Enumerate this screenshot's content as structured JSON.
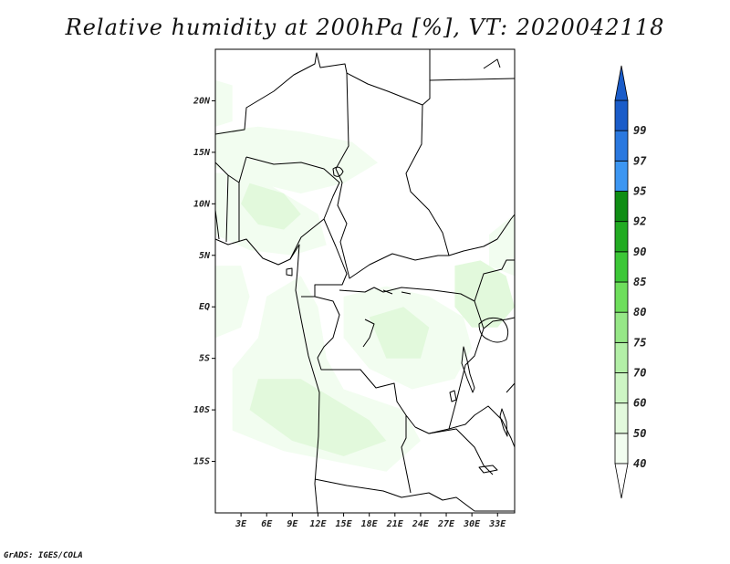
{
  "title": "Relative humidity at 200hPa [%], VT: 2020042118",
  "credit": "GrADS: IGES/COLA",
  "map": {
    "lon_range": [
      0,
      35
    ],
    "lat_range": [
      -20,
      25
    ],
    "lat_ticks": [
      {
        "value": 20,
        "label": "20N"
      },
      {
        "value": 15,
        "label": "15N"
      },
      {
        "value": 10,
        "label": "10N"
      },
      {
        "value": 5,
        "label": "5N"
      },
      {
        "value": 0,
        "label": "EQ"
      },
      {
        "value": -5,
        "label": "5S"
      },
      {
        "value": -10,
        "label": "10S"
      },
      {
        "value": -15,
        "label": "15S"
      }
    ],
    "lon_ticks": [
      {
        "value": 3,
        "label": "3E"
      },
      {
        "value": 6,
        "label": "6E"
      },
      {
        "value": 9,
        "label": "9E"
      },
      {
        "value": 12,
        "label": "12E"
      },
      {
        "value": 15,
        "label": "15E"
      },
      {
        "value": 18,
        "label": "18E"
      },
      {
        "value": 21,
        "label": "21E"
      },
      {
        "value": 24,
        "label": "24E"
      },
      {
        "value": 27,
        "label": "27E"
      },
      {
        "value": 30,
        "label": "30E"
      },
      {
        "value": 33,
        "label": "33E"
      }
    ],
    "humid_regions": [
      {
        "name": "sahel-band",
        "level": 40,
        "poly": [
          [
            0,
            17
          ],
          [
            5,
            17.5
          ],
          [
            10,
            17
          ],
          [
            16,
            16
          ],
          [
            19,
            14
          ],
          [
            15,
            12
          ],
          [
            10,
            11
          ],
          [
            5,
            12
          ],
          [
            0,
            13.5
          ]
        ]
      },
      {
        "name": "west-africa-coast",
        "level": 40,
        "poly": [
          [
            0,
            13
          ],
          [
            4,
            13
          ],
          [
            8,
            11
          ],
          [
            12,
            9
          ],
          [
            13,
            6
          ],
          [
            9,
            5
          ],
          [
            4,
            5.5
          ],
          [
            0,
            7
          ]
        ]
      },
      {
        "name": "nigeria-interior",
        "level": 50,
        "poly": [
          [
            4,
            12
          ],
          [
            8,
            11
          ],
          [
            10,
            9
          ],
          [
            8,
            7.5
          ],
          [
            5,
            8
          ],
          [
            3,
            10
          ]
        ]
      },
      {
        "name": "ethiopia-edge",
        "level": 40,
        "poly": [
          [
            32,
            7
          ],
          [
            35,
            9
          ],
          [
            35,
            3
          ],
          [
            32,
            4
          ]
        ]
      },
      {
        "name": "gabon-angola-coast",
        "level": 40,
        "poly": [
          [
            6,
            1
          ],
          [
            10,
            3
          ],
          [
            12,
            0
          ],
          [
            13,
            -5
          ],
          [
            15,
            -8
          ],
          [
            22,
            -10
          ],
          [
            24,
            -13
          ],
          [
            20,
            -16
          ],
          [
            14,
            -15
          ],
          [
            8,
            -14
          ],
          [
            2,
            -12
          ],
          [
            2,
            -6
          ],
          [
            5,
            -3
          ]
        ]
      },
      {
        "name": "angola-core",
        "level": 50,
        "poly": [
          [
            5,
            -7
          ],
          [
            10,
            -7
          ],
          [
            14,
            -9
          ],
          [
            18,
            -11
          ],
          [
            20,
            -13
          ],
          [
            15,
            -14.5
          ],
          [
            9,
            -13
          ],
          [
            4,
            -10
          ]
        ]
      },
      {
        "name": "congo-basin",
        "level": 40,
        "poly": [
          [
            15,
            1
          ],
          [
            20,
            2
          ],
          [
            25,
            1
          ],
          [
            29,
            -1
          ],
          [
            30,
            -4
          ],
          [
            28,
            -7
          ],
          [
            23,
            -8
          ],
          [
            18,
            -6
          ],
          [
            15,
            -3
          ]
        ]
      },
      {
        "name": "congo-core",
        "level": 50,
        "poly": [
          [
            18,
            -1
          ],
          [
            22,
            0
          ],
          [
            25,
            -2
          ],
          [
            24,
            -5
          ],
          [
            20,
            -5
          ]
        ]
      },
      {
        "name": "uganda-region",
        "level": 50,
        "poly": [
          [
            28,
            4
          ],
          [
            31,
            4.5
          ],
          [
            34,
            3
          ],
          [
            35,
            0
          ],
          [
            33,
            -2
          ],
          [
            30,
            -2
          ],
          [
            28,
            0
          ]
        ]
      },
      {
        "name": "west-atlantic",
        "level": 40,
        "poly": [
          [
            0,
            4
          ],
          [
            3,
            4
          ],
          [
            4,
            1
          ],
          [
            3,
            -2
          ],
          [
            0,
            -3
          ]
        ]
      },
      {
        "name": "west-margin",
        "level": 40,
        "poly": [
          [
            0,
            22
          ],
          [
            2,
            21.5
          ],
          [
            2,
            18
          ],
          [
            0,
            17.5
          ]
        ]
      }
    ],
    "colorbar": [
      {
        "label": "40",
        "color": "#f2fdf0"
      },
      {
        "label": "50",
        "color": "#e2f9dc"
      },
      {
        "label": "60",
        "color": "#cdf5c4"
      },
      {
        "label": "70",
        "color": "#b3efa7"
      },
      {
        "label": "75",
        "color": "#96e787"
      },
      {
        "label": "80",
        "color": "#6ede5c"
      },
      {
        "label": "85",
        "color": "#3cc737"
      },
      {
        "label": "90",
        "color": "#22ab22"
      },
      {
        "label": "92",
        "color": "#0f8d14"
      },
      {
        "label": "95",
        "color": "#3c96f2"
      },
      {
        "label": "97",
        "color": "#2a78df"
      },
      {
        "label": "99",
        "color": "#1a5cc9"
      }
    ]
  }
}
